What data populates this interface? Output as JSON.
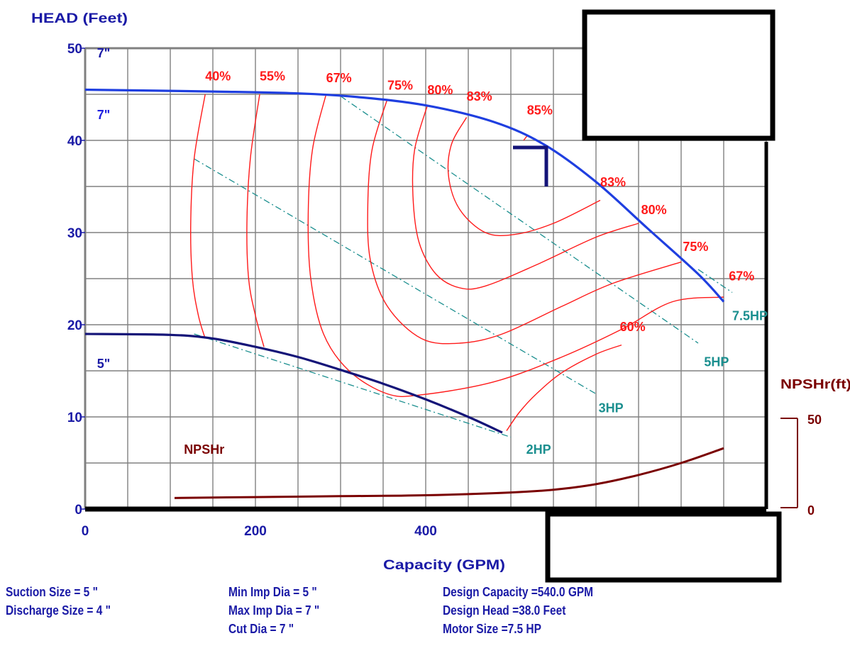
{
  "chart_data": {
    "type": "line",
    "title": "",
    "ylabel": "HEAD (Feet)",
    "xlabel": "Capacity (GPM)",
    "xlim": [
      0,
      800
    ],
    "ylim": [
      0,
      50
    ],
    "x_ticks": [
      0,
      200,
      400
    ],
    "y_ticks": [
      0,
      10,
      20,
      30,
      40,
      50
    ],
    "grid": true,
    "secondary_axis": {
      "label": "NPSHr(ft)",
      "ticks": [
        0,
        50
      ]
    },
    "impeller_curves": [
      {
        "label_left": "7\"",
        "label_top": "7\"",
        "x": [
          0,
          150,
          250,
          320,
          400,
          480,
          540,
          600,
          660,
          720,
          750
        ],
        "y": [
          45.5,
          45.3,
          45.1,
          44.7,
          43.8,
          42.0,
          39.5,
          35.5,
          30.5,
          25.5,
          22.5
        ]
      },
      {
        "label_left": "5\"",
        "x": [
          0,
          100,
          150,
          200,
          250,
          300,
          350,
          400,
          450,
          490
        ],
        "y": [
          19.0,
          18.9,
          18.5,
          17.6,
          16.5,
          15.1,
          13.6,
          11.9,
          10.0,
          8.3
        ]
      }
    ],
    "efficiency_curves": [
      {
        "label": "40%",
        "x": [
          141,
          128,
          124,
          126,
          133,
          141
        ],
        "y": [
          45,
          38,
          31,
          25,
          21,
          18.5
        ]
      },
      {
        "label": "55%",
        "x": [
          205,
          194,
          190,
          192,
          200,
          210
        ],
        "y": [
          45,
          38,
          31,
          25,
          21,
          17.6
        ]
      },
      {
        "label": "67%",
        "x": [
          283,
          267,
          262,
          265,
          280,
          310,
          355,
          395,
          480,
          560,
          630,
          690,
          750
        ],
        "y": [
          45,
          39,
          32,
          25,
          19,
          15,
          12.5,
          12.4,
          13.8,
          16.5,
          19.5,
          22.5,
          23.0
        ]
      },
      {
        "label": "75%",
        "x": [
          355,
          337,
          332,
          335,
          355,
          395,
          440,
          490,
          560,
          620,
          700
        ],
        "y": [
          44.5,
          39,
          33,
          27,
          22,
          18.5,
          18.0,
          19.0,
          22.0,
          24.5,
          26.8
        ]
      },
      {
        "label": "80%",
        "x": [
          402,
          387,
          385,
          392,
          412,
          440,
          470,
          530,
          600,
          650
        ],
        "y": [
          43.8,
          39,
          34,
          29,
          25.5,
          24.0,
          24.2,
          26.5,
          29.5,
          31.0
        ]
      },
      {
        "label": "83%",
        "x": [
          448,
          430,
          427,
          440,
          470,
          505,
          550,
          605
        ],
        "y": [
          42.5,
          39.5,
          36,
          32.5,
          30.0,
          29.8,
          31.0,
          33.5
        ]
      },
      {
        "label": "85%",
        "x": [
          515,
          520
        ],
        "y": [
          40.0,
          40.6
        ]
      },
      {
        "label": "60%",
        "x": [
          495,
          510,
          530,
          560,
          600,
          630
        ],
        "y": [
          8.5,
          10.5,
          12.5,
          14.8,
          16.8,
          17.8
        ]
      }
    ],
    "power_lines": [
      {
        "label": "2HP",
        "x": [
          128,
          500
        ],
        "y": [
          19.0,
          7.8
        ]
      },
      {
        "label": "3HP",
        "x": [
          128,
          600
        ],
        "y": [
          38.0,
          12.5
        ]
      },
      {
        "label": "5HP",
        "x": [
          300,
          720
        ],
        "y": [
          44.8,
          18.0
        ]
      },
      {
        "label": "7.5HP",
        "x": [
          720,
          760
        ],
        "y": [
          26.0,
          23.5
        ]
      }
    ],
    "npshr_curve": {
      "label": "NPSHr",
      "x": [
        105,
        200,
        300,
        400,
        500,
        550,
        600,
        650,
        700,
        750
      ],
      "y": [
        1.2,
        1.3,
        1.4,
        1.5,
        1.8,
        2.1,
        2.7,
        3.7,
        5.0,
        6.6
      ]
    },
    "design_point": {
      "x": 540,
      "y": 38
    },
    "efficiency_labels": [
      {
        "text": "40%",
        "x": 141,
        "y": 46.5
      },
      {
        "text": "55%",
        "x": 205,
        "y": 46.5
      },
      {
        "text": "67%",
        "x": 283,
        "y": 46.3
      },
      {
        "text": "75%",
        "x": 355,
        "y": 45.5
      },
      {
        "text": "80%",
        "x": 402,
        "y": 45.0
      },
      {
        "text": "83%",
        "x": 448,
        "y": 44.3
      },
      {
        "text": "85%",
        "x": 519,
        "y": 42.8
      },
      {
        "text": "83%",
        "x": 605,
        "y": 35.0
      },
      {
        "text": "80%",
        "x": 653,
        "y": 32.0
      },
      {
        "text": "75%",
        "x": 702,
        "y": 28.0
      },
      {
        "text": "67%",
        "x": 756,
        "y": 24.8
      },
      {
        "text": "60%",
        "x": 628,
        "y": 19.3
      }
    ],
    "power_labels": [
      {
        "text": "7.5HP",
        "x": 760,
        "y": 20.5
      },
      {
        "text": "5HP",
        "x": 727,
        "y": 15.5
      },
      {
        "text": "3HP",
        "x": 603,
        "y": 10.5
      },
      {
        "text": "2HP",
        "x": 518,
        "y": 6.0
      }
    ],
    "curve_labels": [
      {
        "text": "7\"",
        "x": 14,
        "y": 49.0,
        "color": "#1a1aa6"
      },
      {
        "text": "7\"",
        "x": 14,
        "y": 42.3,
        "color": "#2020e0"
      },
      {
        "text": "5\"",
        "x": 14,
        "y": 15.3,
        "color": "#1a1aa6"
      },
      {
        "text": "NPSHr",
        "x": 116,
        "y": 6.0,
        "color": "#7a0000"
      }
    ]
  },
  "info": {
    "suction_size": "Suction Size = 5 \"",
    "discharge_size": "Discharge Size = 4 \"",
    "min_imp_dia": "Min Imp Dia = 5 \"",
    "max_imp_dia": "Max Imp Dia = 7 \"",
    "cut_dia": "Cut Dia = 7 \"",
    "design_capacity": "Design Capacity =540.0 GPM",
    "design_head": "Design Head =38.0 Feet",
    "motor_size": "Motor Size =7.5 HP"
  },
  "colors": {
    "efficiency": "#ff1a1a",
    "impeller_7": "#1f3fe0",
    "impeller_5": "#141478",
    "power": "#1b8f8f",
    "npshr": "#7a0000",
    "axis_text": "#1a1aa6",
    "grid": "#808080"
  }
}
